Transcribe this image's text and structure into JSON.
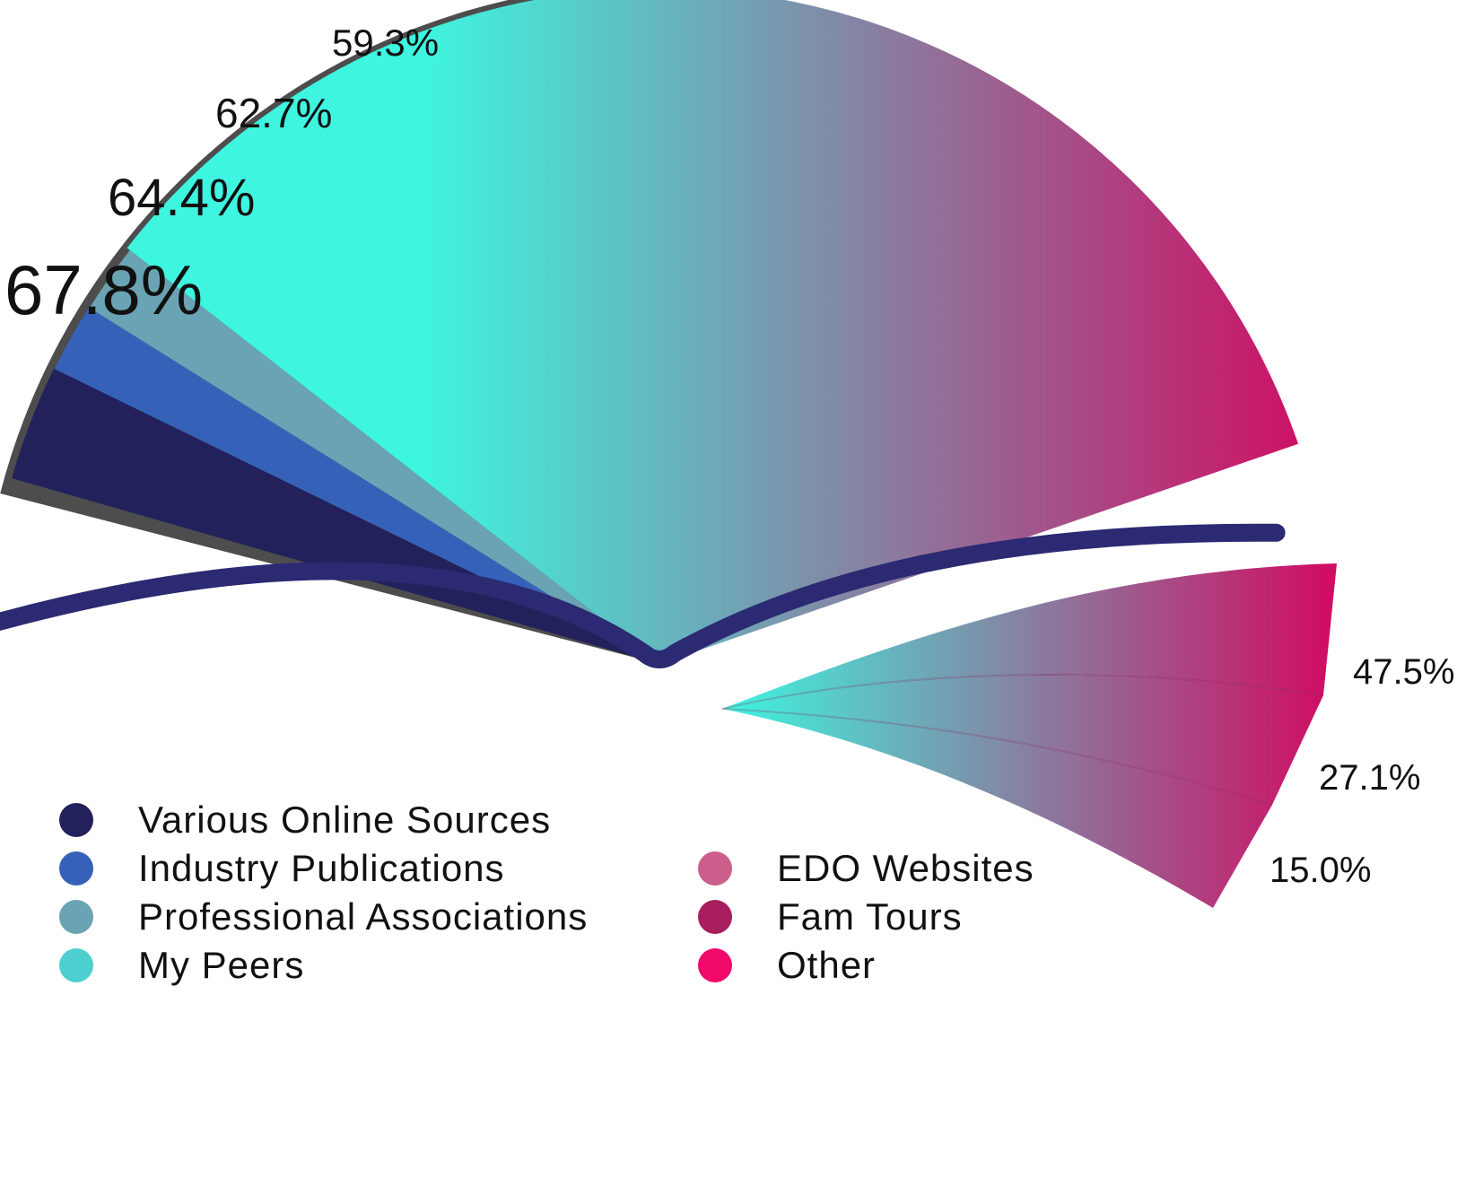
{
  "chart_data": {
    "type": "pie",
    "main_slices": [
      {
        "label": "Various Online Sources",
        "value": 67.8,
        "value_label": "67.8%",
        "color": "#22215b"
      },
      {
        "label": "Industry Publications",
        "value": 64.4,
        "value_label": "64.4%",
        "color": "#3562b8"
      },
      {
        "label": "Professional Associations",
        "value": 62.7,
        "value_label": "62.7%",
        "color": "#6aa3b3"
      },
      {
        "label": "My Peers",
        "value": 59.3,
        "value_label": "59.3%",
        "color": "#4ecfcf"
      }
    ],
    "side_slices": [
      {
        "label": "EDO Websites",
        "value": 47.5,
        "value_label": "47.5%",
        "color": "#cc5e8c"
      },
      {
        "label": "Fam Tours",
        "value": 27.1,
        "value_label": "27.1%",
        "color": "#a91e5e"
      },
      {
        "label": "Other",
        "value": 15.0,
        "value_label": "15.0%",
        "color": "#f0086a"
      }
    ],
    "gradient_start": "#3ef5e0",
    "gradient_end": "#d10a62",
    "outline_color": "#2b2a72",
    "shadow_color": "#4d4d4d",
    "legend_placement": "bottom-left"
  }
}
